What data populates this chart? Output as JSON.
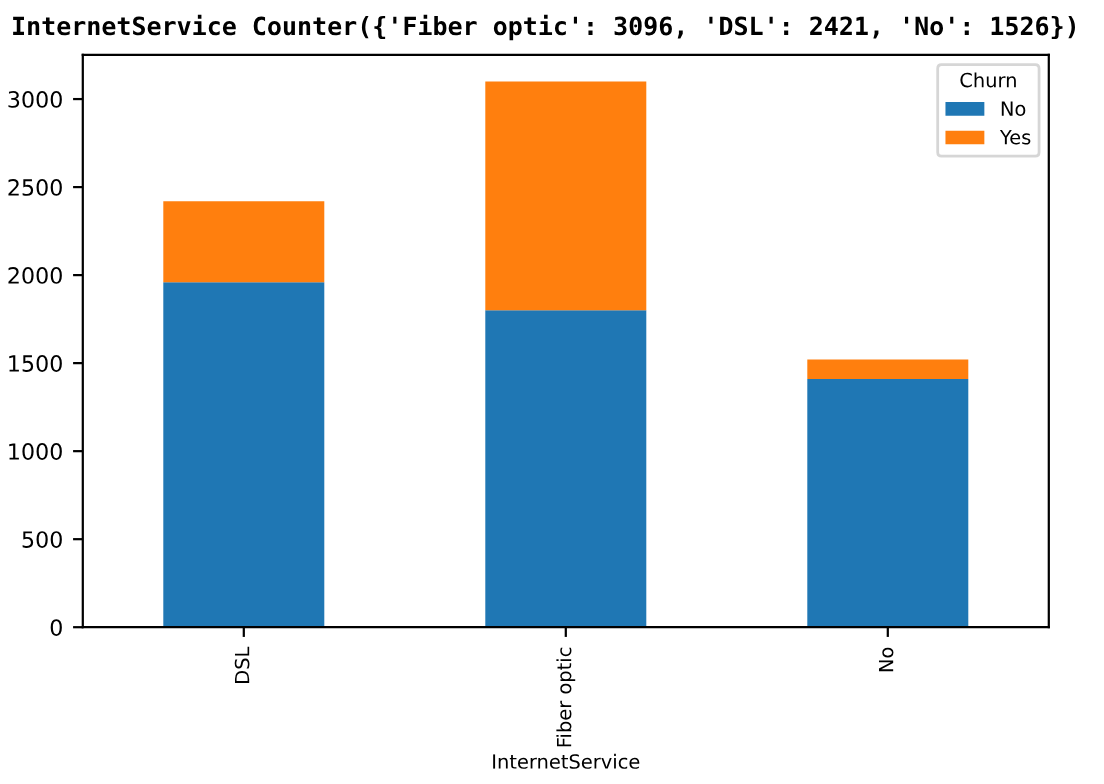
{
  "chart_data": {
    "type": "bar",
    "stacked": true,
    "title": "InternetService Counter({'Fiber optic': 3096, 'DSL': 2421, 'No': 1526})",
    "xlabel": "InternetService",
    "legend_title": "Churn",
    "legend": "top right",
    "categories": [
      "DSL",
      "Fiber optic",
      "No"
    ],
    "series": [
      {
        "name": "No",
        "color": "#1f77b4",
        "values": [
          1960,
          1800,
          1410
        ]
      },
      {
        "name": "Yes",
        "color": "#ff7f0e",
        "values": [
          460,
          1300,
          110
        ]
      }
    ],
    "ylim": [
      0,
      3251
    ],
    "yticks": [
      0,
      500,
      1000,
      1500,
      2000,
      2500,
      3000
    ],
    "grid": false
  }
}
